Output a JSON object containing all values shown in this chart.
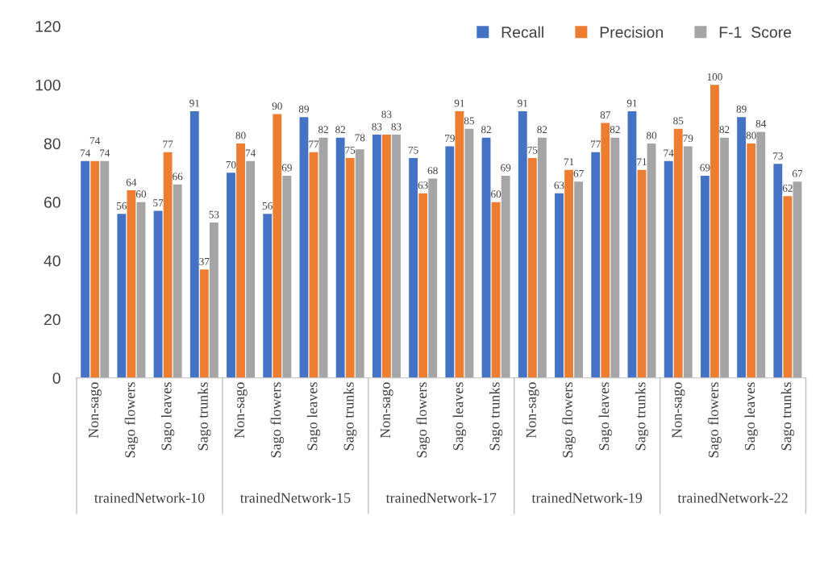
{
  "chart_data": {
    "type": "bar",
    "categories": [
      "Non-sago",
      "Sago flowers",
      "Sago leaves",
      "Sago trunks",
      "Non-sago",
      "Sago flowers",
      "Sago leaves",
      "Sago trunks",
      "Non-sago",
      "Sago flowers",
      "Sago leaves",
      "Sago trunks",
      "Non-sago",
      "Sago flowers",
      "Sago leaves",
      "Sago trunks",
      "Non-sago",
      "Sago flowers",
      "Sago leaves",
      "Sago trunks"
    ],
    "series": [
      {
        "name": "Recall",
        "color": "#4472c4",
        "values": [
          74,
          56,
          57,
          91,
          70,
          56,
          89,
          82,
          83,
          75,
          79,
          82,
          91,
          63,
          77,
          91,
          74,
          69,
          89,
          73
        ]
      },
      {
        "name": "Precision",
        "color": "#ed7d31",
        "values": [
          74,
          64,
          77,
          37,
          80,
          90,
          77,
          75,
          83,
          63,
          91,
          60,
          75,
          71,
          87,
          71,
          85,
          100,
          80,
          62
        ]
      },
      {
        "name": "F-1  Score",
        "color": "#a5a5a5",
        "values": [
          74,
          60,
          66,
          53,
          74,
          69,
          82,
          78,
          83,
          68,
          85,
          69,
          82,
          67,
          82,
          80,
          79,
          82,
          84,
          67
        ]
      }
    ],
    "annotations": [
      "trainedNetwork-10",
      "trainedNetwork-15",
      "trainedNetwork-17",
      "trainedNetwork-19",
      "trainedNetwork-22"
    ],
    "ylim": [
      0,
      120
    ],
    "yticks": [
      0,
      20,
      40,
      60,
      80,
      100,
      120
    ],
    "data_labels": true,
    "grid": false,
    "legend": "top right"
  }
}
